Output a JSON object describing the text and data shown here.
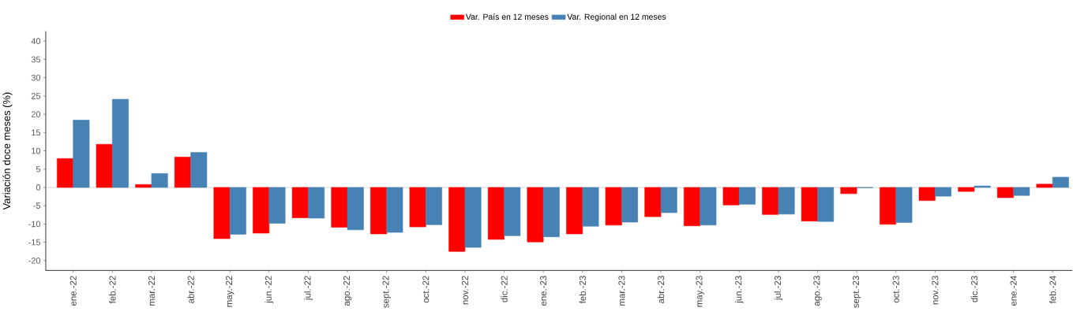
{
  "chart_data": {
    "type": "bar",
    "ylabel": "Variación doce meses (%)",
    "categories": [
      "ene.-22",
      "feb.-22",
      "mar.-22",
      "abr.-22",
      "may.-22",
      "jun.-22",
      "jul.-22",
      "ago.-22",
      "sept.-22",
      "oct.-22",
      "nov.-22",
      "dic.-22",
      "ene.-23",
      "feb.-23",
      "mar.-23",
      "abr.-23",
      "may.-23",
      "jun.-23",
      "jul.-23",
      "ago.-23",
      "sept.-23",
      "oct.-23",
      "nov.-23",
      "dic.-23",
      "ene.-24",
      "feb.-24"
    ],
    "series": [
      {
        "name": "Var. País en 12 meses",
        "color": "#ff0000",
        "values": [
          7.9,
          11.8,
          0.8,
          8.3,
          -14.0,
          -12.5,
          -8.3,
          -10.9,
          -12.7,
          -10.8,
          -17.5,
          -14.2,
          -14.9,
          -12.7,
          -10.3,
          -8.0,
          -10.5,
          -4.8,
          -7.4,
          -9.2,
          -1.7,
          -10.1,
          -3.6,
          -1.1,
          -2.8,
          0.9
        ]
      },
      {
        "name": "Var. Regional en 12 meses",
        "color": "#4682b4",
        "values": [
          18.4,
          24.1,
          3.8,
          9.6,
          -12.8,
          -9.8,
          -8.4,
          -11.6,
          -12.3,
          -10.2,
          -16.4,
          -13.2,
          -13.5,
          -10.6,
          -9.5,
          -6.9,
          -10.3,
          -4.6,
          -7.3,
          -9.3,
          -0.1,
          -9.6,
          -2.4,
          0.4,
          -2.2,
          2.8
        ]
      }
    ],
    "ylim": [
      -22.7,
      42.7
    ],
    "yticks": [
      -20,
      -15,
      -10,
      -5,
      0,
      5,
      10,
      15,
      20,
      25,
      30,
      35,
      40
    ],
    "ref_lines": [
      {
        "axis": "y",
        "value": 0,
        "color": "#c8c8c8"
      }
    ],
    "legend": "top",
    "grid": false
  }
}
